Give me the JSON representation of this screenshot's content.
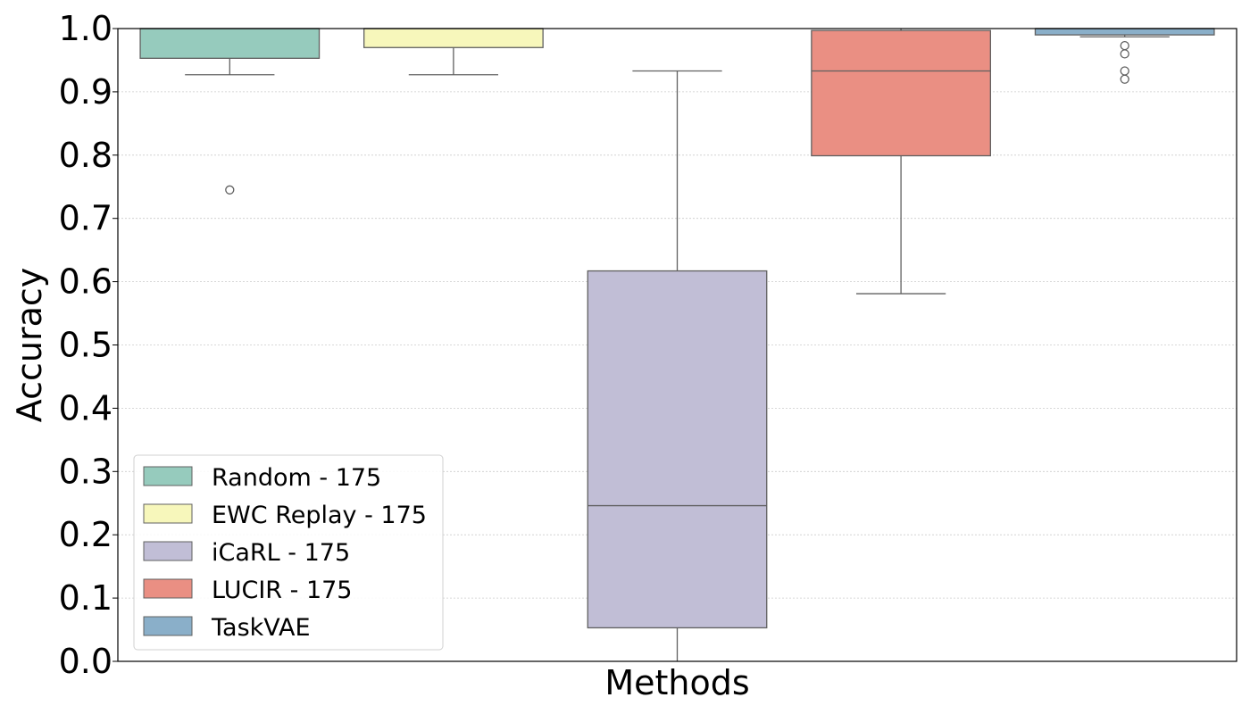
{
  "chart_data": {
    "type": "box",
    "xlabel": "Methods",
    "ylabel": "Accuracy",
    "ylim": [
      0,
      1
    ],
    "yticks": [
      "0.0",
      "0.1",
      "0.2",
      "0.3",
      "0.4",
      "0.5",
      "0.6",
      "0.7",
      "0.8",
      "0.9",
      "1.0"
    ],
    "grid": "horizontal dotted",
    "legend_position": "lower-left",
    "series": [
      {
        "name": "Random - 175",
        "color": "#96cbbd",
        "whisker_low": 0.927,
        "q1": 0.953,
        "median": 1.0,
        "q3": 1.0,
        "whisker_high": 1.0,
        "outliers": [
          0.745
        ]
      },
      {
        "name": "EWC Replay - 175",
        "color": "#f7f7bb",
        "whisker_low": 0.927,
        "q1": 0.97,
        "median": 1.0,
        "q3": 1.0,
        "whisker_high": 1.0,
        "outliers": []
      },
      {
        "name": "iCaRL - 175",
        "color": "#c1bed6",
        "whisker_low": 0.0,
        "q1": 0.053,
        "median": 0.246,
        "q3": 0.617,
        "whisker_high": 0.933,
        "outliers": []
      },
      {
        "name": "LUCIR - 175",
        "color": "#ea8f83",
        "whisker_low": 0.581,
        "q1": 0.799,
        "median": 0.933,
        "q3": 0.997,
        "whisker_high": 1.0,
        "outliers": []
      },
      {
        "name": "TaskVAE",
        "color": "#8aafc9",
        "whisker_low": 0.987,
        "q1": 0.99,
        "median": 1.0,
        "q3": 1.0,
        "whisker_high": 1.0,
        "outliers": [
          0.973,
          0.96,
          0.933,
          0.92
        ]
      }
    ]
  }
}
